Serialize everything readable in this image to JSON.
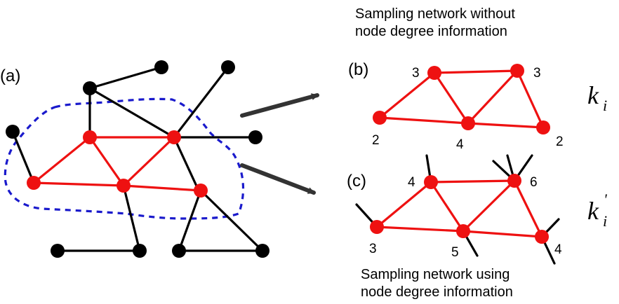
{
  "panel_labels": {
    "a": "(a)",
    "b": "(b)",
    "c": "(c)"
  },
  "captions": {
    "top_line1": "Sampling network without",
    "top_line2": "node degree information",
    "bottom_line1": "Sampling network using",
    "bottom_line2": "node degree information"
  },
  "symbols": {
    "k_base": "k",
    "k_sub": "i",
    "kprime_base": "k",
    "kprime_sub": "i",
    "kprime_mark": "'"
  },
  "degrees_b": [
    "3",
    "3",
    "2",
    "4",
    "2"
  ],
  "degrees_c": [
    "4",
    "6",
    "3",
    "5",
    "4"
  ],
  "colors": {
    "sampled": "#ee1111",
    "unsampled": "#000000",
    "boundary": "#1a1acc",
    "arrow": "#333333"
  }
}
